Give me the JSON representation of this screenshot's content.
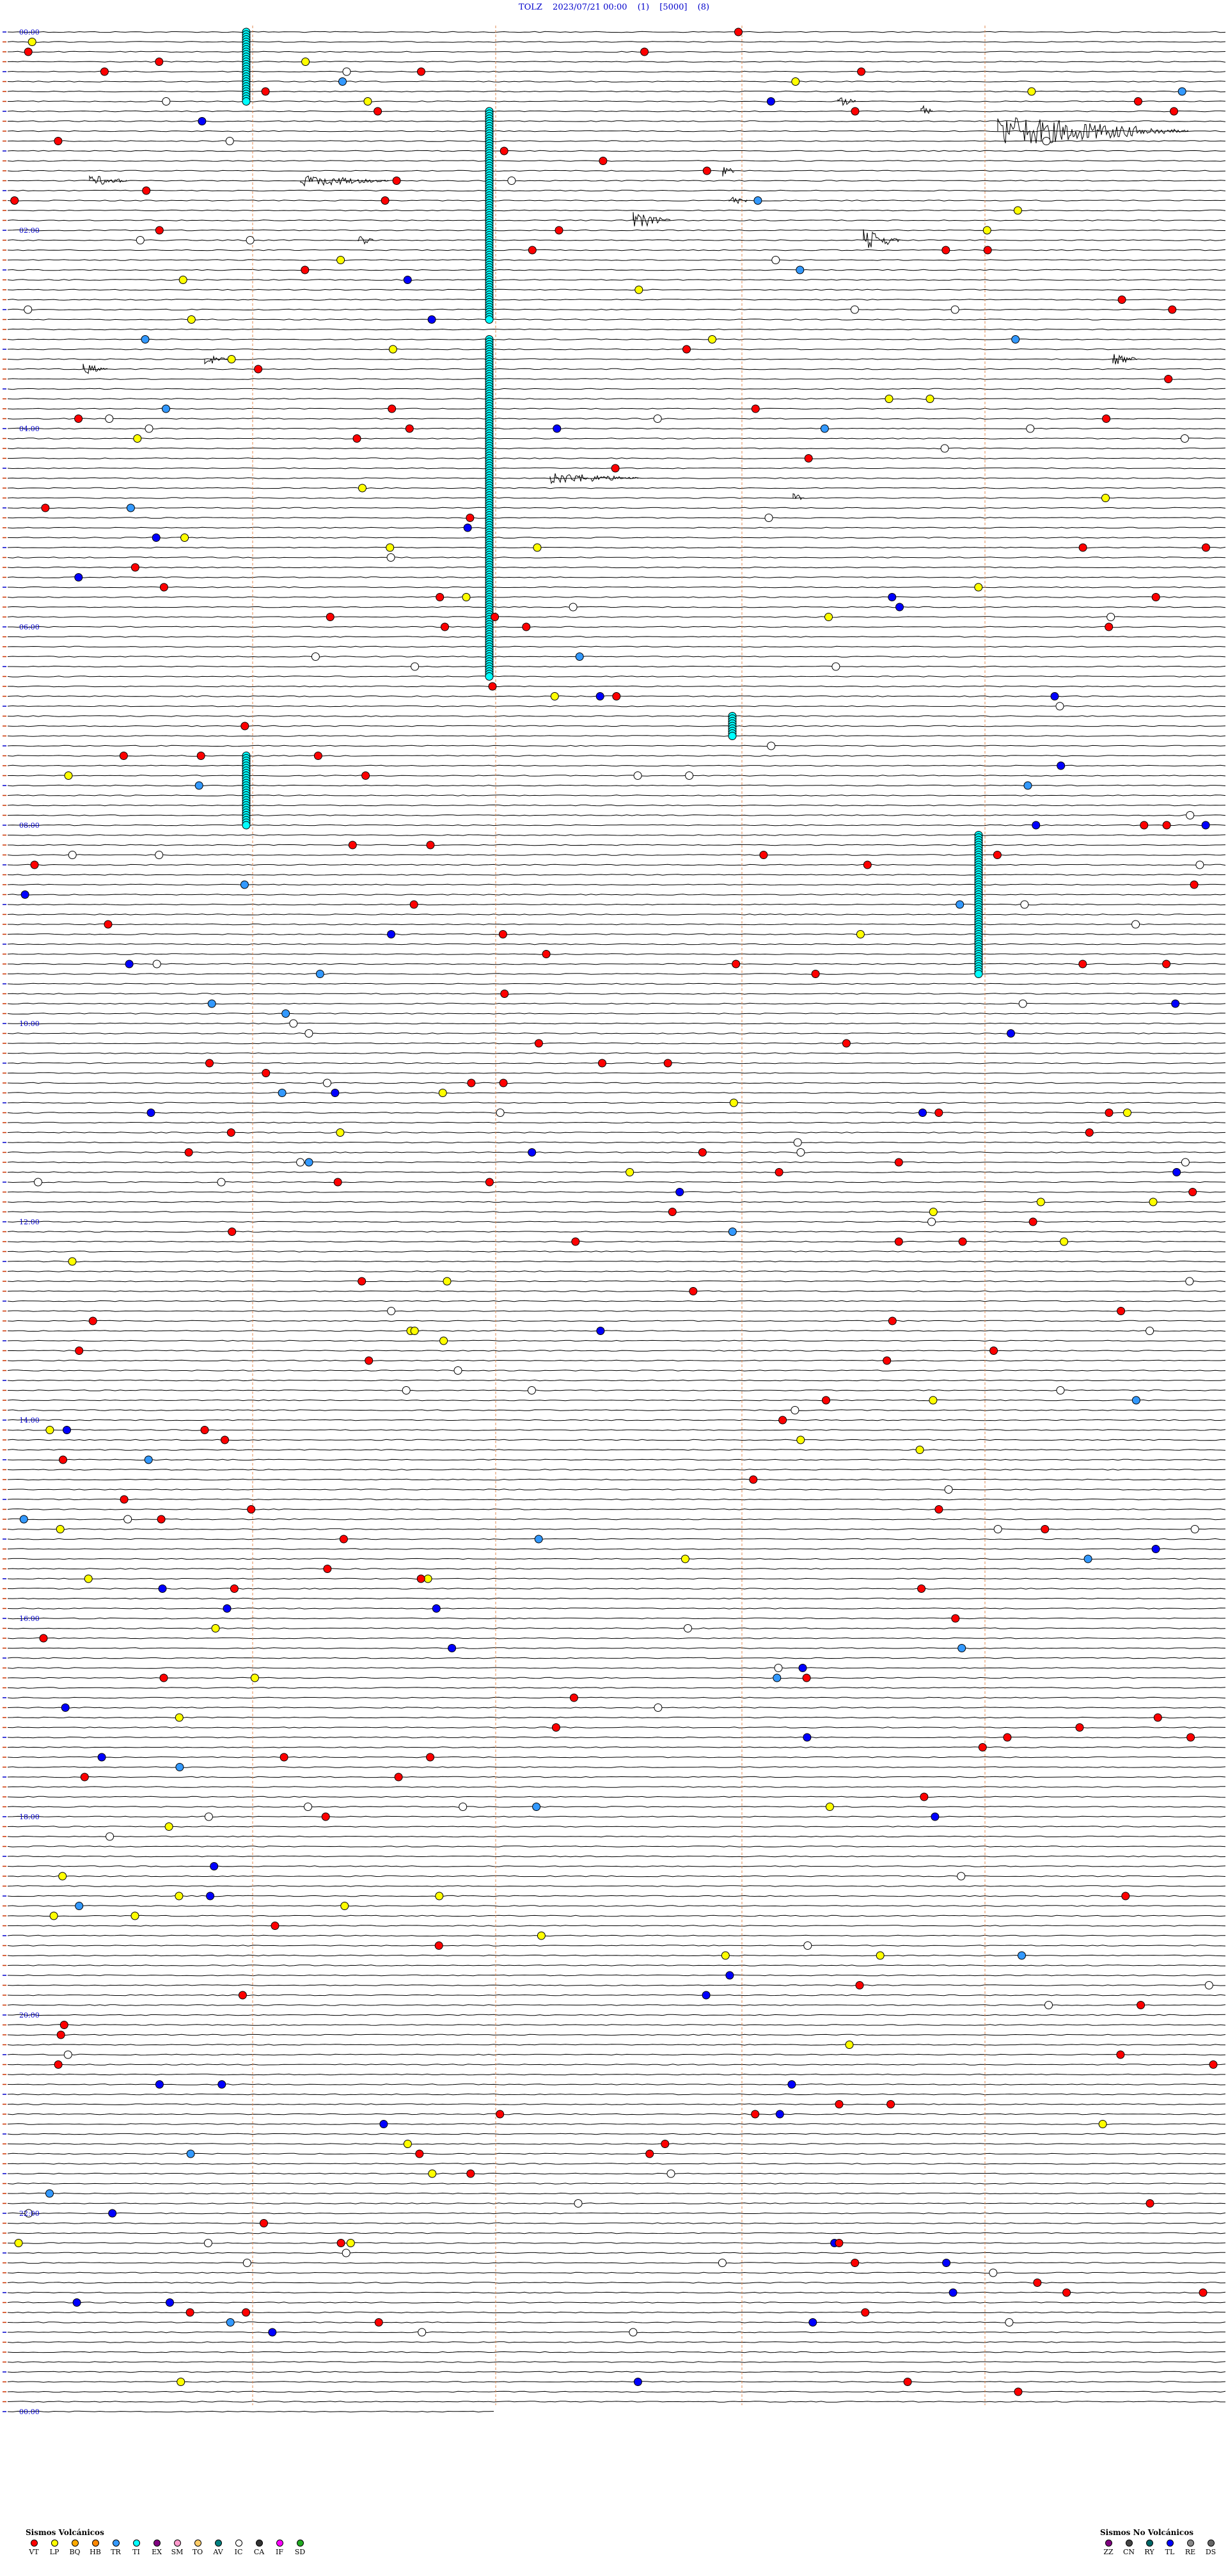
{
  "header": {
    "station": "TOLZ",
    "datetime": "2023/07/21 00:00",
    "mode": "(1)",
    "gain": "[5000]",
    "code": "(8)"
  },
  "time_labels": [
    "00:00",
    "02:00",
    "04:00",
    "06:00",
    "08:00",
    "10:00",
    "12:00",
    "14:00",
    "16:00",
    "18:00",
    "20:00",
    "22:00",
    "00:00"
  ],
  "volcanic": {
    "title": "Sismos Volcánicos",
    "items": [
      {
        "label": "VT",
        "color": "#ff0000"
      },
      {
        "label": "LP",
        "color": "#ffff00"
      },
      {
        "label": "BQ",
        "color": "#ffaa00"
      },
      {
        "label": "HB",
        "color": "#ff8800"
      },
      {
        "label": "TR",
        "color": "#3399ff"
      },
      {
        "label": "TI",
        "color": "#00ffff"
      },
      {
        "label": "EX",
        "color": "#800080"
      },
      {
        "label": "SM",
        "color": "#ff99cc"
      },
      {
        "label": "TO",
        "color": "#ffcc66"
      },
      {
        "label": "AV",
        "color": "#008080"
      },
      {
        "label": "IC",
        "color": "#ffffff"
      },
      {
        "label": "CA",
        "color": "#333333"
      },
      {
        "label": "IF",
        "color": "#ff00ff"
      },
      {
        "label": "SD",
        "color": "#22aa22"
      }
    ]
  },
  "non_volcanic": {
    "title": "Sismos No Volcánicos",
    "items": [
      {
        "label": "ZZ",
        "color": "#800080"
      },
      {
        "label": "CN",
        "color": "#444444"
      },
      {
        "label": "RY",
        "color": "#006666"
      },
      {
        "label": "TL",
        "color": "#0000ff"
      },
      {
        "label": "RE",
        "color": "#888888"
      },
      {
        "label": "DS",
        "color": "#666666"
      }
    ]
  },
  "colors": {
    "trace": "#000000",
    "time_label": "#0000cc",
    "hour_marker": "#cc3300",
    "vertical_marker": "#e08a50",
    "vt": "#ff0000",
    "lp": "#ffff00",
    "tr": "#3399ff",
    "ti": "#00ffff",
    "tl": "#0000ff",
    "ic": "#ffffff"
  }
}
